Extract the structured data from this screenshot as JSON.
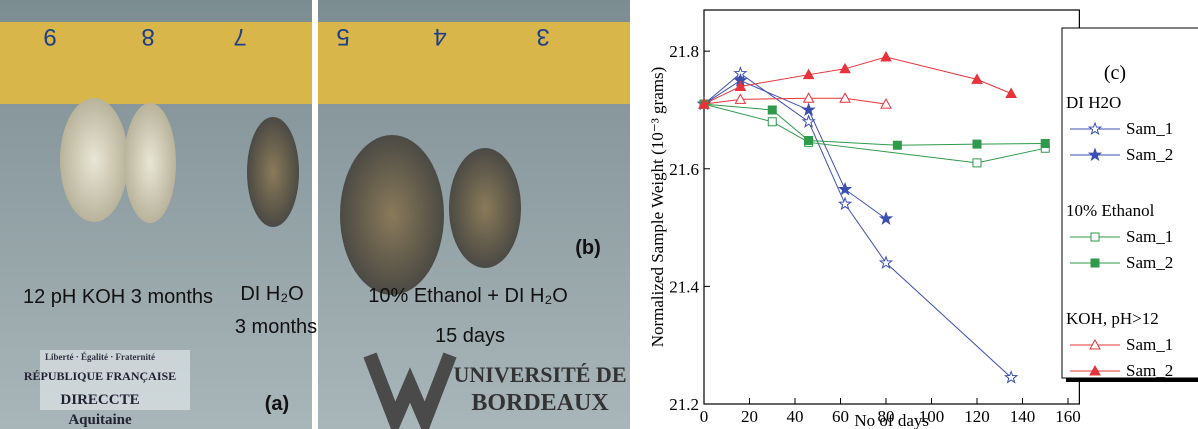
{
  "photos": [
    {
      "label": "(a)",
      "ruler": [
        "9",
        "8",
        "7"
      ],
      "captions": [
        "12 pH KOH 3 months",
        "DI H₂O",
        "3 months"
      ],
      "logo": [
        "Liberté · Égalité · Fraternité",
        "RÉPUBLIQUE FRANÇAISE",
        "DIRECCTE",
        "Aquitaine"
      ]
    },
    {
      "label": "(b)",
      "ruler": [
        "5",
        "4",
        "3"
      ],
      "captions": [
        "10% Ethanol + DI H₂O",
        "15 days"
      ],
      "logo": [
        "UNIVERSITÉ DE",
        "BORDEAUX"
      ]
    }
  ],
  "chart_data": {
    "type": "line",
    "panel_label": "(c)",
    "x_label": "No of days",
    "y_label": "Normalized Sample Weight (10⁻³ grams)",
    "xlim": [
      0,
      165
    ],
    "xticks": [
      0,
      20,
      40,
      60,
      80,
      100,
      120,
      140,
      160
    ],
    "ylim": [
      21.2,
      21.87
    ],
    "yticks": [
      21.2,
      21.4,
      21.6,
      21.8
    ],
    "groups": [
      {
        "name": "DI H2O",
        "series": [
          {
            "name": "Sam_1",
            "color": "#3b4fb0",
            "marker": "star",
            "filled": false,
            "x": [
              0,
              16,
              46,
              62,
              80,
              135
            ],
            "values": [
              21.71,
              21.762,
              21.68,
              21.54,
              21.44,
              21.245
            ]
          },
          {
            "name": "Sam_2",
            "color": "#3b4fb0",
            "marker": "star",
            "filled": true,
            "x": [
              0,
              16,
              46,
              62,
              80
            ],
            "values": [
              21.71,
              21.75,
              21.7,
              21.565,
              21.515
            ]
          }
        ]
      },
      {
        "name": "10% Ethanol",
        "series": [
          {
            "name": "Sam_1",
            "color": "#2e9a4a",
            "marker": "square",
            "filled": false,
            "x": [
              0,
              30,
              46,
              120,
              150
            ],
            "values": [
              21.71,
              21.68,
              21.645,
              21.61,
              21.635
            ]
          },
          {
            "name": "Sam_2",
            "color": "#2e9a4a",
            "marker": "square",
            "filled": true,
            "x": [
              0,
              30,
              46,
              85,
              120,
              150
            ],
            "values": [
              21.71,
              21.7,
              21.648,
              21.64,
              21.642,
              21.643
            ]
          }
        ]
      },
      {
        "name": "KOH, pH>12",
        "series": [
          {
            "name": "Sam_1",
            "color": "#e8333a",
            "marker": "triangle",
            "filled": false,
            "x": [
              0,
              16,
              46,
              62,
              80
            ],
            "values": [
              21.71,
              21.718,
              21.72,
              21.72,
              21.71
            ]
          },
          {
            "name": "Sam_2",
            "color": "#e8333a",
            "marker": "triangle",
            "filled": true,
            "x": [
              0,
              16,
              46,
              62,
              80,
              120,
              135
            ],
            "values": [
              21.71,
              21.74,
              21.76,
              21.77,
              21.79,
              21.752,
              21.728
            ]
          }
        ]
      }
    ]
  }
}
